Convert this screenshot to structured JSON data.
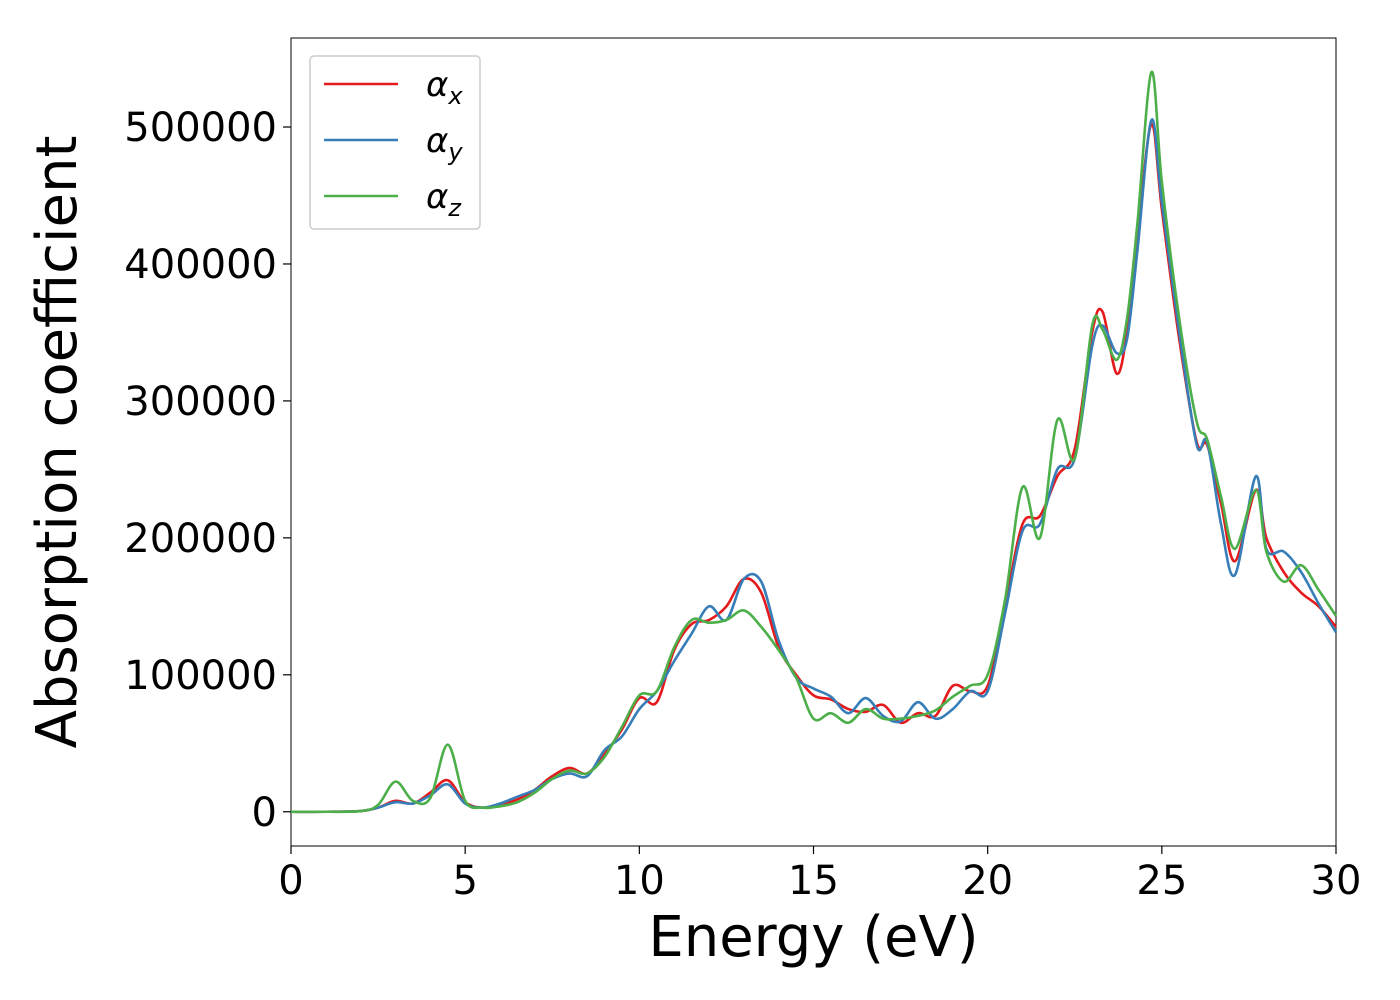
{
  "chart_data": {
    "type": "line",
    "xlabel": "Energy (eV)",
    "ylabel": "Absorption coefficient",
    "xlim": [
      0,
      30
    ],
    "ylim": [
      -25000,
      565000
    ],
    "xticks": [
      0,
      5,
      10,
      15,
      20,
      25,
      30
    ],
    "xtick_labels": [
      "0",
      "5",
      "10",
      "15",
      "20",
      "25",
      "30"
    ],
    "yticks": [
      0,
      100000,
      200000,
      300000,
      400000,
      500000
    ],
    "ytick_labels": [
      "0",
      "100000",
      "200000",
      "300000",
      "400000",
      "500000"
    ],
    "grid": false,
    "legend_position": "top-left",
    "series": [
      {
        "name": "αx",
        "symbol": "α",
        "subscript": "x",
        "color": "#e41a1c",
        "x": [
          0,
          1,
          2,
          2.5,
          3,
          3.5,
          4,
          4.5,
          5,
          5.5,
          6,
          6.5,
          7,
          7.5,
          8,
          8.5,
          9,
          9.5,
          10,
          10.5,
          11,
          11.5,
          12,
          12.5,
          13,
          13.5,
          14,
          14.5,
          15,
          15.5,
          16,
          16.5,
          17,
          17.5,
          18,
          18.5,
          19,
          19.5,
          20,
          20.5,
          21,
          21.5,
          22,
          22.5,
          23,
          23.3,
          23.7,
          24,
          24.3,
          24.7,
          25,
          25.5,
          26,
          26.3,
          26.7,
          27.1,
          27.7,
          28,
          28.5,
          29,
          29.5,
          30
        ],
        "y": [
          0,
          0,
          500,
          3000,
          8000,
          6000,
          14000,
          23000,
          7000,
          3000,
          5000,
          9000,
          16000,
          26000,
          32000,
          28000,
          42000,
          60000,
          83000,
          80000,
          118000,
          137000,
          140000,
          150000,
          170000,
          160000,
          120000,
          100000,
          85000,
          82000,
          75000,
          73000,
          78000,
          65000,
          72000,
          70000,
          92000,
          88000,
          92000,
          150000,
          210000,
          216000,
          245000,
          265000,
          350000,
          365000,
          320000,
          350000,
          420000,
          502000,
          440000,
          345000,
          270000,
          268000,
          225000,
          183000,
          235000,
          200000,
          175000,
          160000,
          150000,
          135000
        ]
      },
      {
        "name": "αy",
        "symbol": "α",
        "subscript": "y",
        "color": "#377eb8",
        "x": [
          0,
          1,
          2,
          2.5,
          3,
          3.5,
          4,
          4.5,
          5,
          5.5,
          6,
          6.5,
          7,
          7.5,
          8,
          8.5,
          9,
          9.5,
          10,
          10.5,
          11,
          11.5,
          12,
          12.5,
          13,
          13.5,
          14,
          14.5,
          15,
          15.5,
          16,
          16.5,
          17,
          17.5,
          18,
          18.5,
          19,
          19.5,
          20,
          20.5,
          21,
          21.5,
          22,
          22.5,
          23,
          23.3,
          23.7,
          24,
          24.3,
          24.7,
          25,
          25.5,
          26,
          26.3,
          26.7,
          27.1,
          27.7,
          28,
          28.5,
          29,
          29.5,
          30
        ],
        "y": [
          0,
          0,
          500,
          3000,
          7000,
          6000,
          12000,
          20000,
          6000,
          3000,
          6000,
          11000,
          16000,
          24000,
          28000,
          26000,
          45000,
          55000,
          75000,
          88000,
          110000,
          130000,
          150000,
          140000,
          170000,
          168000,
          125000,
          98000,
          90000,
          84000,
          72000,
          83000,
          70000,
          66000,
          80000,
          68000,
          75000,
          88000,
          88000,
          145000,
          205000,
          210000,
          250000,
          258000,
          340000,
          355000,
          335000,
          345000,
          410000,
          505000,
          445000,
          350000,
          268000,
          270000,
          210000,
          173000,
          245000,
          192000,
          190000,
          175000,
          152000,
          131000
        ]
      },
      {
        "name": "αz",
        "symbol": "α",
        "subscript": "z",
        "color": "#4daf4a",
        "x": [
          0,
          1,
          2,
          2.5,
          3,
          3.5,
          4,
          4.5,
          5,
          5.5,
          6,
          6.5,
          7,
          7.5,
          8,
          8.5,
          9,
          9.5,
          10,
          10.5,
          11,
          11.5,
          12,
          12.5,
          13,
          13.5,
          14,
          14.5,
          15,
          15.5,
          16,
          16.5,
          17,
          17.5,
          18,
          18.5,
          19,
          19.5,
          20,
          20.5,
          21,
          21.5,
          22,
          22.5,
          23,
          23.3,
          23.7,
          24,
          24.3,
          24.7,
          25,
          25.5,
          26,
          26.3,
          26.7,
          27.1,
          27.7,
          28,
          28.5,
          29,
          29.5,
          30
        ],
        "y": [
          0,
          0,
          500,
          5000,
          22000,
          8000,
          10000,
          49000,
          8000,
          3000,
          4000,
          7000,
          14000,
          24000,
          30000,
          28000,
          40000,
          62000,
          85000,
          88000,
          120000,
          140000,
          138000,
          140000,
          147000,
          135000,
          118000,
          98000,
          68000,
          72000,
          65000,
          75000,
          68000,
          68000,
          70000,
          74000,
          84000,
          92000,
          100000,
          155000,
          237000,
          200000,
          286000,
          258000,
          355000,
          352000,
          330000,
          360000,
          430000,
          540000,
          460000,
          360000,
          285000,
          272000,
          230000,
          192000,
          235000,
          190000,
          168000,
          180000,
          162000,
          143000
        ]
      }
    ]
  }
}
